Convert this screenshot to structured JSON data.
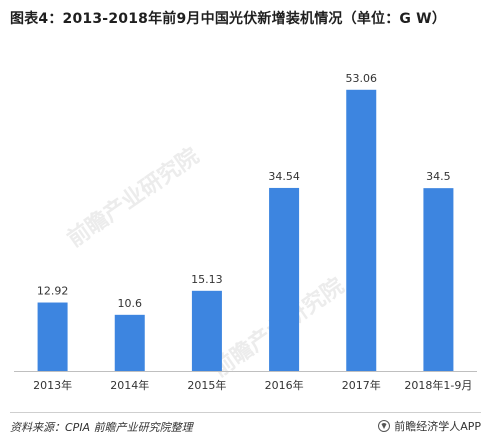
{
  "title": "图表4：2013-2018年前9月中国光伏新增装机情况（单位：G W）",
  "chart_data": {
    "type": "bar",
    "categories": [
      "2013年",
      "2014年",
      "2015年",
      "2016年",
      "2017年",
      "2018年1-9月"
    ],
    "values": [
      12.92,
      10.6,
      15.13,
      34.54,
      53.06,
      34.5
    ],
    "value_labels": [
      "12.92",
      "10.6",
      "15.13",
      "34.54",
      "53.06",
      "34.5"
    ],
    "ylim": [
      0,
      60
    ],
    "grid": false,
    "bar_color": "#3d85e0",
    "axis_color": "#bfbfbf"
  },
  "watermarks": [
    "前瞻产业研究院",
    "前瞻产业研究院"
  ],
  "footer": {
    "source": "资料来源：CPIA  前瞻产业研究院整理",
    "brand": "前瞻经济学人APP"
  }
}
